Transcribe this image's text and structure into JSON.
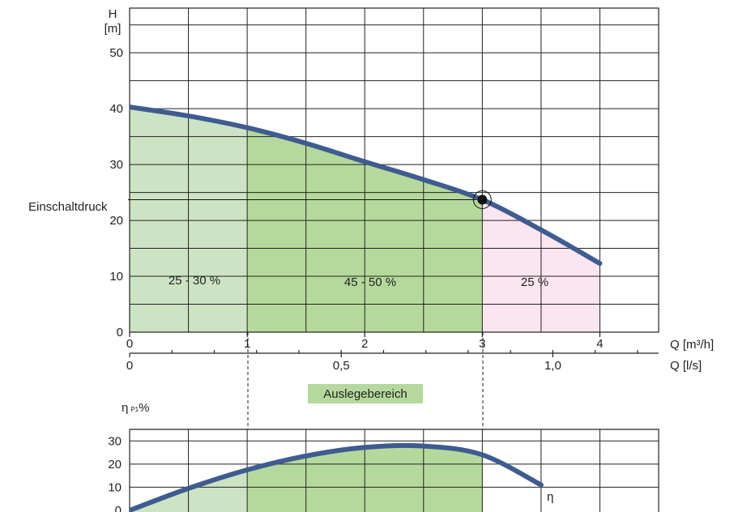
{
  "chart_data": [
    {
      "type": "line",
      "title": "",
      "ylabel_symbol": "H",
      "ylabel_unit": "[m]",
      "xlabel": "Q [m³/h]",
      "xlabel_secondary": "Q [l/s]",
      "xlim": [
        0,
        4.5
      ],
      "ylim": [
        0,
        58
      ],
      "x_ticks": [
        0,
        1,
        2,
        3,
        4
      ],
      "x_tick_labels": [
        "0",
        "1",
        "2",
        "3",
        "4"
      ],
      "y_ticks": [
        0,
        10,
        20,
        30,
        40,
        50
      ],
      "y_tick_labels": [
        "0",
        "10",
        "20",
        "30",
        "40",
        "50"
      ],
      "secondary_x_ticks": [
        {
          "value": 0,
          "label": "0"
        },
        {
          "value": 0.5,
          "label": "0,5"
        },
        {
          "value": 1.0,
          "label": "1,0"
        }
      ],
      "grid": true,
      "series": [
        {
          "x": [
            0,
            0.5,
            1,
            1.5,
            2,
            2.5,
            3,
            3.5,
            4
          ],
          "y": [
            40.3,
            38.7,
            36.6,
            33.8,
            30.5,
            27.3,
            23.7,
            18.3,
            12.3
          ]
        }
      ],
      "regions": [
        {
          "x_from": 0,
          "x_to": 1,
          "label": "25 - 30 %",
          "color": "#cde4c4"
        },
        {
          "x_from": 1,
          "x_to": 3,
          "label": "45 - 50 %",
          "color": "#b5d99c"
        },
        {
          "x_from": 3,
          "x_to": 4,
          "label": "25 %",
          "color": "#fbe5ef"
        }
      ],
      "annotations": [
        {
          "label": "Einschaltdruck",
          "x": 3,
          "y": 23.7
        }
      ],
      "colors": {
        "curve": "#3f5c91",
        "marker": "#111111"
      }
    },
    {
      "type": "line",
      "title": "",
      "ylabel": "η P1%",
      "ylabel_main": "η",
      "ylabel_sub": "P1",
      "ylabel_suffix": "%",
      "xlim": [
        0,
        4.5
      ],
      "ylim": [
        0,
        35
      ],
      "y_ticks": [
        0,
        10,
        20,
        30
      ],
      "y_tick_labels": [
        "0",
        "10",
        "20",
        "30"
      ],
      "grid": true,
      "series": [
        {
          "name": "η",
          "x": [
            0,
            0.5,
            1,
            1.5,
            2,
            2.5,
            3,
            3.5
          ],
          "y": [
            0,
            9.5,
            17.5,
            23.5,
            27.2,
            27.8,
            24,
            11
          ]
        }
      ],
      "regions": [
        {
          "x_from": 0,
          "x_to": 1,
          "color": "#cde4c4"
        },
        {
          "x_from": 1,
          "x_to": 3,
          "color": "#b5d99c"
        }
      ],
      "curve_label": "η"
    }
  ],
  "design_range": {
    "label": "Auslegebereich",
    "x_from": 1,
    "x_to": 3,
    "color": "#b5d99c"
  }
}
